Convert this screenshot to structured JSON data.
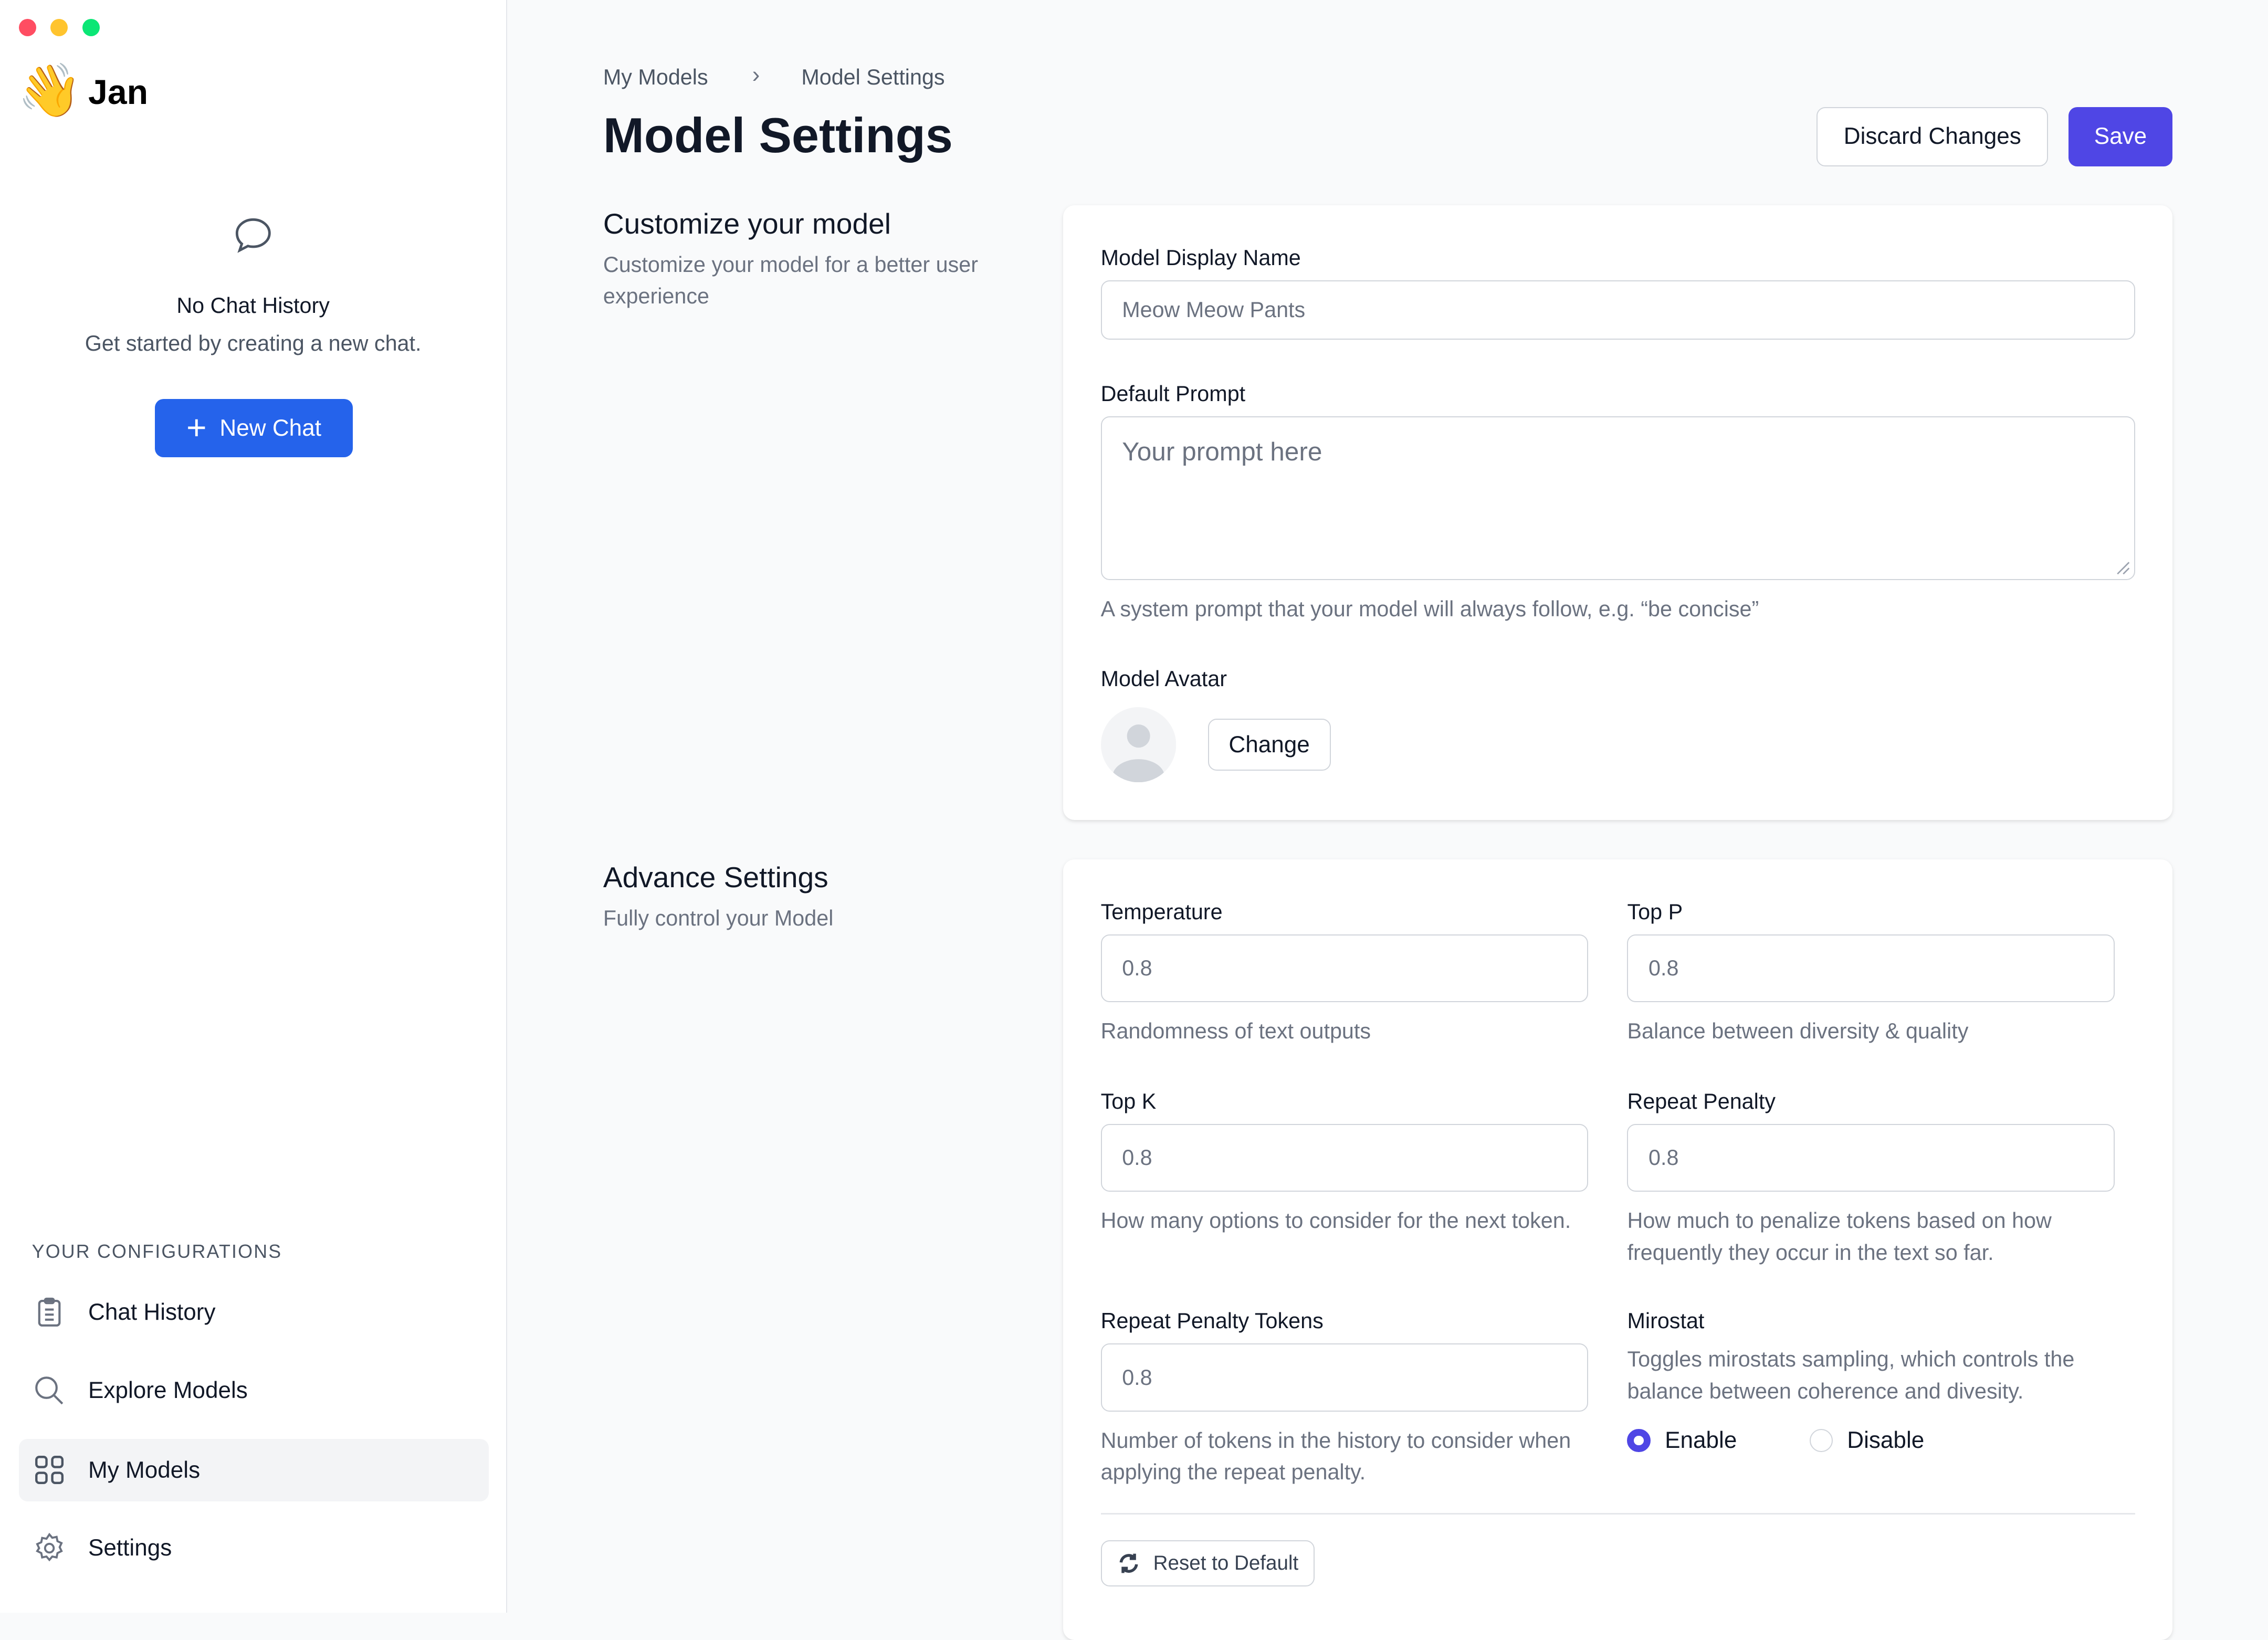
{
  "window": {
    "traffic_lights": [
      "#ff4d62",
      "#ffc42e",
      "#0be675"
    ]
  },
  "sidebar": {
    "app_name": "Jan",
    "logo_icon": "waving-hand-emoji",
    "empty_state": {
      "icon": "chat-bubble-icon",
      "title": "No Chat History",
      "subtitle": "Get started by creating a new chat."
    },
    "new_chat_label": "New Chat",
    "section_title": "YOUR CONFIGURATIONS",
    "items": [
      {
        "label": "Chat History",
        "icon": "clipboard-icon",
        "active": false
      },
      {
        "label": "Explore Models",
        "icon": "search-icon",
        "active": false
      },
      {
        "label": "My Models",
        "icon": "grid-icon",
        "active": true
      },
      {
        "label": "Settings",
        "icon": "gear-icon",
        "active": false
      }
    ]
  },
  "header": {
    "breadcrumb": [
      "My Models",
      "Model Settings"
    ],
    "title": "Model Settings",
    "discard_label": "Discard Changes",
    "save_label": "Save",
    "accent": "#4f46e5"
  },
  "customize": {
    "title": "Customize your model",
    "description": "Customize your model for a better user experience",
    "display_name_label": "Model Display Name",
    "display_name_value": "Meow Meow Pants",
    "prompt_label": "Default Prompt",
    "prompt_placeholder": "Your prompt here",
    "prompt_help": "A system prompt that your model will always follow, e.g. “be concise”",
    "avatar_label": "Model Avatar",
    "change_label": "Change"
  },
  "advance": {
    "title": "Advance Settings",
    "description": "Fully control your Model",
    "temperature": {
      "label": "Temperature",
      "value": "0.8",
      "help": "Randomness of text outputs"
    },
    "top_p": {
      "label": "Top P",
      "value": "0.8",
      "help": "Balance between diversity & quality"
    },
    "top_k": {
      "label": "Top K",
      "value": "0.8",
      "help": "How many options to consider for the next token."
    },
    "repeat_penalty": {
      "label": "Repeat Penalty",
      "value": "0.8",
      "help": "How much to penalize tokens based on how frequently they occur in the text so far."
    },
    "repeat_penalty_tokens": {
      "label": "Repeat Penalty Tokens",
      "value": "0.8",
      "help": "Number of tokens in the history to consider when applying the repeat penalty."
    },
    "mirostat": {
      "label": "Mirostat",
      "description": "Toggles mirostats sampling, which controls the balance between coherence and divesity.",
      "options": [
        "Enable",
        "Disable"
      ],
      "selected": "Enable"
    },
    "reset_label": "Reset to Default"
  }
}
